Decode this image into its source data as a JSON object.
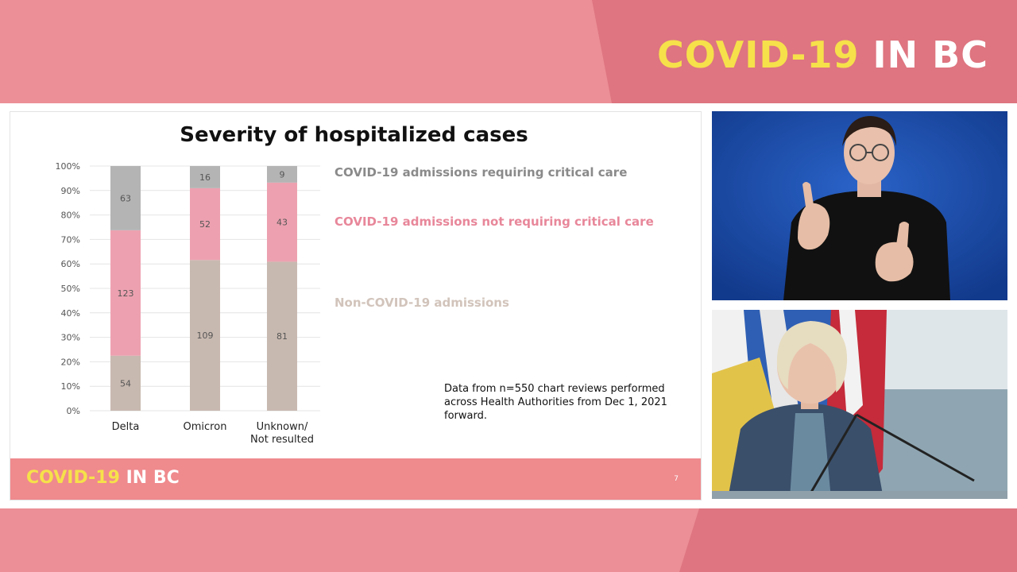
{
  "broadcast": {
    "logo_covid": "COVID-19",
    "logo_bc": "IN BC"
  },
  "slide": {
    "title": "Severity of hospitalized cases",
    "legend": [
      {
        "label": "COVID-19 admissions requiring critical care",
        "color": "#8a8a8a"
      },
      {
        "label": "COVID-19 admissions not requiring critical care",
        "color": "#e8879a"
      },
      {
        "label": "Non-COVID-19  admissions",
        "color": "#d2c4bb"
      }
    ],
    "note": "Data from n=550 chart reviews performed across Health Authorities from Dec 1, 2021 forward.",
    "footer_logo_covid": "COVID-19",
    "footer_logo_bc": "IN BC",
    "page_number": "7"
  },
  "chart_data": {
    "type": "bar",
    "stacked": "percent",
    "categories": [
      "Delta",
      "Omicron",
      "Unknown/\nNot resulted"
    ],
    "series": [
      {
        "name": "Non-COVID-19  admissions",
        "values": [
          54,
          109,
          81
        ],
        "color": "#c8b9b0"
      },
      {
        "name": "COVID-19 admissions not requiring critical care",
        "values": [
          123,
          52,
          43
        ],
        "color": "#eda1b0"
      },
      {
        "name": "COVID-19 admissions requiring critical care",
        "values": [
          63,
          16,
          9
        ],
        "color": "#b4b4b4"
      }
    ],
    "yticks": [
      "0%",
      "10%",
      "20%",
      "30%",
      "40%",
      "50%",
      "60%",
      "70%",
      "80%",
      "90%",
      "100%"
    ],
    "ylim": [
      0,
      100
    ],
    "grid": true
  },
  "colors": {
    "brand_pink": "#ec8f96",
    "brand_pink_dark": "#de7580",
    "logo_yellow": "#f6e14a"
  }
}
